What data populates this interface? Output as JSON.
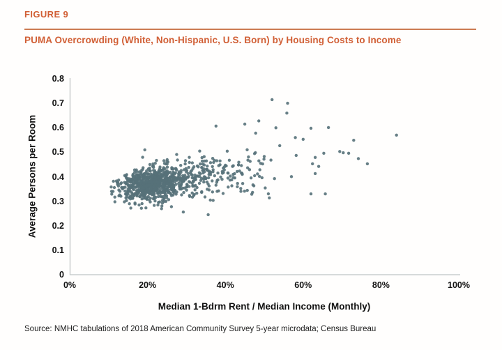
{
  "header": {
    "figure_label": "FIGURE 9",
    "title": "PUMA Overcrowding (White, Non-Hispanic, U.S. Born) by Housing Costs to Income",
    "accent_color": "#d15f35",
    "rule_color": "#cc7b52"
  },
  "source": {
    "text": "Source: NMHC tabulations of 2018 American Community Survey 5-year microdata; Census Bureau"
  },
  "chart_data": {
    "type": "scatter",
    "title": "PUMA Overcrowding (White, Non-Hispanic, U.S. Born) by Housing Costs to Income",
    "xlabel": "Median 1-Bdrm Rent / Median Income (Monthly)",
    "ylabel": "Average Persons per Room",
    "xlim": [
      0,
      100
    ],
    "ylim": [
      0,
      0.8
    ],
    "grid": false,
    "legend": null,
    "axis_color": "#c9cdce",
    "marker": {
      "color": "#567179",
      "radius": 2.2,
      "opacity": 0.9
    },
    "xticks": {
      "values": [
        0,
        20,
        40,
        60,
        80,
        100
      ],
      "labels": [
        "0%",
        "20%",
        "40%",
        "60%",
        "80%",
        "100%"
      ]
    },
    "yticks": {
      "values": [
        0,
        0.1,
        0.2,
        0.3,
        0.4,
        0.5,
        0.6,
        0.7,
        0.8
      ],
      "labels": [
        "0",
        "0.1",
        "0.2",
        "0.3",
        "0.4",
        "0.5",
        "0.6",
        "0.7",
        "0.8"
      ]
    },
    "outlier_points": [
      [
        52,
        0.715
      ],
      [
        56,
        0.7
      ],
      [
        55.8,
        0.66
      ],
      [
        48.6,
        0.628
      ],
      [
        45,
        0.615
      ],
      [
        37.6,
        0.607
      ],
      [
        53,
        0.6
      ],
      [
        62,
        0.598
      ],
      [
        66.5,
        0.601
      ],
      [
        47.8,
        0.578
      ],
      [
        58,
        0.56
      ],
      [
        84,
        0.57
      ],
      [
        60,
        0.553
      ],
      [
        73,
        0.549
      ],
      [
        70.3,
        0.498
      ],
      [
        71.7,
        0.496
      ],
      [
        69.4,
        0.503
      ],
      [
        65.3,
        0.496
      ],
      [
        63.1,
        0.479
      ],
      [
        74.2,
        0.474
      ],
      [
        76.5,
        0.453
      ],
      [
        62.4,
        0.453
      ],
      [
        64,
        0.442
      ],
      [
        58.2,
        0.487
      ],
      [
        63.1,
        0.413
      ],
      [
        62,
        0.33
      ],
      [
        65.7,
        0.33
      ],
      [
        29.2,
        0.256
      ],
      [
        35.6,
        0.245
      ],
      [
        19.3,
        0.51
      ]
    ],
    "dense_cluster": {
      "description": "Approximately 1000 PUMAs; dense mass between 11% and 45% rent-to-income with average persons per room 0.30-0.45, thinning toward 57%; mild positive trend",
      "n": 1000,
      "seed": 12345,
      "x_mixture": [
        {
          "w": 0.62,
          "mu": 20.5,
          "sd": 4.3
        },
        {
          "w": 0.28,
          "mu": 28.0,
          "sd": 6.5
        },
        {
          "w": 0.1,
          "mu": 40.0,
          "sd": 7.5
        }
      ],
      "x_min": 10.5,
      "x_max": 57,
      "y_intercept": 0.33,
      "y_slope": 0.002,
      "y_sd_base": 0.028,
      "y_sd_slope": 0.0006,
      "y_min": 0.245,
      "y_max": 0.56
    }
  }
}
